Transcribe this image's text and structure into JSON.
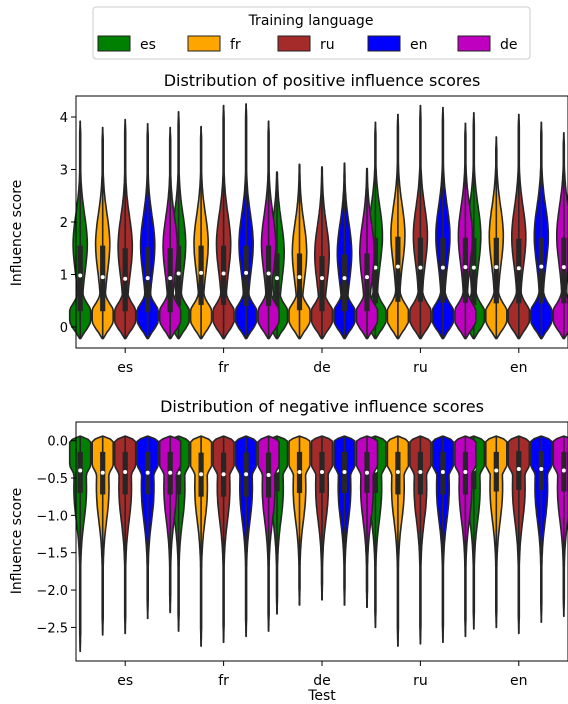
{
  "legend": {
    "title": "Training language",
    "entries": [
      {
        "label": "es",
        "color": "#008000"
      },
      {
        "label": "fr",
        "color": "#ffa500"
      },
      {
        "label": "ru",
        "color": "#a52a2a"
      },
      {
        "label": "en",
        "color": "#0000ff"
      },
      {
        "label": "de",
        "color": "#c000c0"
      }
    ]
  },
  "chart_data": [
    {
      "type": "violin",
      "title": "Distribution of positive influence scores",
      "xlabel": "",
      "ylabel": "Influence score",
      "categories": [
        "es",
        "fr",
        "de",
        "ru",
        "en"
      ],
      "ylim": [
        -0.4,
        4.4
      ],
      "yticks": [
        0,
        1,
        2,
        3,
        4
      ],
      "ytick_labels": [
        "0",
        "1",
        "2",
        "3",
        "4"
      ],
      "legend": "top-center, above plots",
      "series": [
        {
          "name": "es",
          "max": [
            3.92,
            4.1,
            2.95,
            3.9,
            4.08
          ],
          "median": [
            0.98,
            1.02,
            0.93,
            1.13,
            1.13
          ],
          "q1": [
            0.3,
            0.4,
            0.3,
            0.45,
            0.42
          ],
          "q3": [
            1.55,
            1.55,
            1.4,
            1.7,
            1.7
          ]
        },
        {
          "name": "fr",
          "max": [
            3.8,
            3.82,
            3.1,
            4.05,
            3.62
          ],
          "median": [
            0.95,
            1.03,
            0.95,
            1.15,
            1.14
          ],
          "q1": [
            0.3,
            0.42,
            0.32,
            0.48,
            0.45
          ],
          "q3": [
            1.55,
            1.55,
            1.4,
            1.72,
            1.7
          ]
        },
        {
          "name": "ru",
          "max": [
            3.95,
            4.22,
            3.05,
            4.22,
            4.05
          ],
          "median": [
            0.92,
            1.02,
            0.93,
            1.13,
            1.12
          ],
          "q1": [
            0.3,
            0.42,
            0.3,
            0.48,
            0.45
          ],
          "q3": [
            1.5,
            1.55,
            1.35,
            1.7,
            1.68
          ]
        },
        {
          "name": "en",
          "max": [
            3.87,
            4.25,
            3.12,
            4.18,
            3.9
          ],
          "median": [
            0.93,
            1.03,
            0.93,
            1.13,
            1.15
          ],
          "q1": [
            0.28,
            0.4,
            0.3,
            0.46,
            0.45
          ],
          "q3": [
            1.52,
            1.55,
            1.38,
            1.7,
            1.7
          ]
        },
        {
          "name": "de",
          "max": [
            3.8,
            3.92,
            3.02,
            3.88,
            3.7
          ],
          "median": [
            0.93,
            1.02,
            0.95,
            1.14,
            1.14
          ],
          "q1": [
            0.28,
            0.4,
            0.3,
            0.46,
            0.45
          ],
          "q3": [
            1.5,
            1.55,
            1.4,
            1.7,
            1.7
          ]
        }
      ]
    },
    {
      "type": "violin",
      "title": "Distribution of negative influence scores",
      "xlabel": "Test",
      "ylabel": "Influence score",
      "categories": [
        "es",
        "fr",
        "de",
        "ru",
        "en"
      ],
      "ylim": [
        -2.95,
        0.25
      ],
      "yticks": [
        0,
        -0.5,
        -1,
        -1.5,
        -2,
        -2.5
      ],
      "ytick_labels": [
        "0.0",
        "−0.5",
        "−1.0",
        "−1.5",
        "−2.0",
        "−2.5"
      ],
      "series": [
        {
          "name": "es",
          "min": [
            -2.82,
            -2.55,
            -2.32,
            -2.5,
            -2.52
          ],
          "median": [
            -0.4,
            -0.43,
            -0.4,
            -0.4,
            -0.38
          ],
          "q1": [
            -0.7,
            -0.72,
            -0.68,
            -0.7,
            -0.65
          ],
          "q3": [
            -0.15,
            -0.15,
            -0.15,
            -0.15,
            -0.14
          ]
        },
        {
          "name": "fr",
          "min": [
            -2.6,
            -2.75,
            -2.2,
            -2.75,
            -2.5
          ],
          "median": [
            -0.43,
            -0.45,
            -0.42,
            -0.42,
            -0.4
          ],
          "q1": [
            -0.72,
            -0.75,
            -0.7,
            -0.72,
            -0.68
          ],
          "q3": [
            -0.15,
            -0.16,
            -0.15,
            -0.15,
            -0.15
          ]
        },
        {
          "name": "ru",
          "min": [
            -2.58,
            -2.7,
            -2.13,
            -2.72,
            -2.58
          ],
          "median": [
            -0.42,
            -0.45,
            -0.42,
            -0.42,
            -0.38
          ],
          "q1": [
            -0.72,
            -0.75,
            -0.7,
            -0.72,
            -0.66
          ],
          "q3": [
            -0.15,
            -0.16,
            -0.15,
            -0.15,
            -0.14
          ]
        },
        {
          "name": "en",
          "min": [
            -2.38,
            -2.62,
            -2.2,
            -2.7,
            -2.43
          ],
          "median": [
            -0.43,
            -0.45,
            -0.42,
            -0.42,
            -0.38
          ],
          "q1": [
            -0.72,
            -0.75,
            -0.7,
            -0.72,
            -0.66
          ],
          "q3": [
            -0.15,
            -0.16,
            -0.15,
            -0.15,
            -0.14
          ]
        },
        {
          "name": "de",
          "min": [
            -2.3,
            -2.55,
            -2.23,
            -2.62,
            -2.35
          ],
          "median": [
            -0.43,
            -0.46,
            -0.43,
            -0.42,
            -0.4
          ],
          "q1": [
            -0.72,
            -0.76,
            -0.7,
            -0.72,
            -0.68
          ],
          "q3": [
            -0.15,
            -0.16,
            -0.15,
            -0.15,
            -0.15
          ]
        }
      ]
    }
  ]
}
